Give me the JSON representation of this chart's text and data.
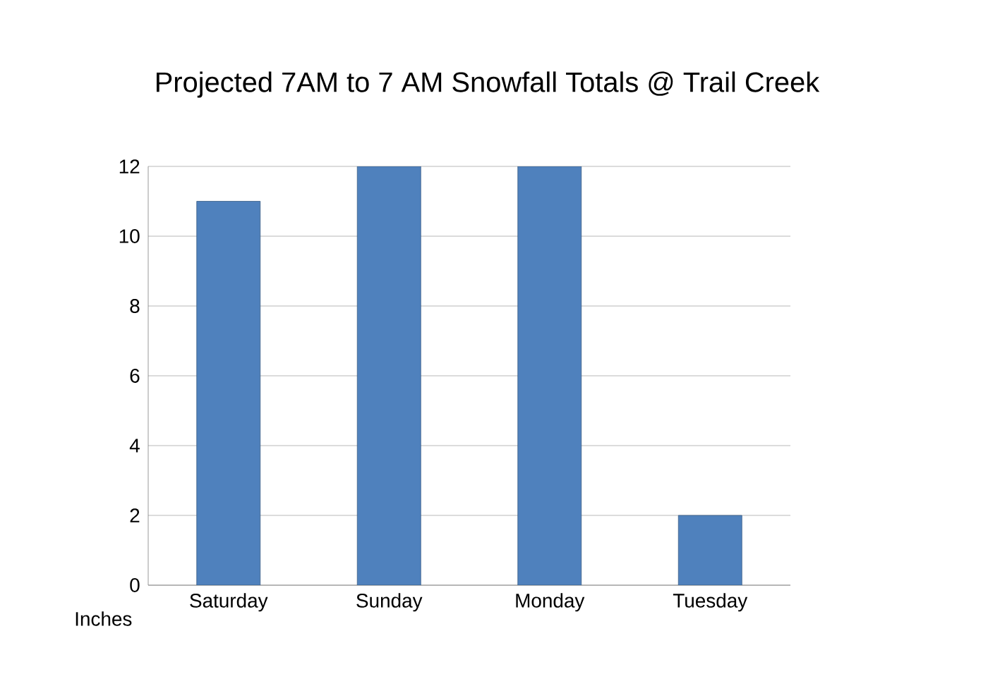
{
  "chart_data": {
    "type": "bar",
    "title": "Projected 7AM to 7 AM Snowfall Totals @ Trail Creek",
    "ylabel": "Inches",
    "categories": [
      "Saturday",
      "Sunday",
      "Monday",
      "Tuesday"
    ],
    "values": [
      11,
      12,
      12,
      2
    ],
    "color": "#4f81bd",
    "ylim": [
      0,
      12
    ],
    "yticks": [
      0,
      2,
      4,
      6,
      8,
      10,
      12
    ],
    "grid": "y"
  }
}
